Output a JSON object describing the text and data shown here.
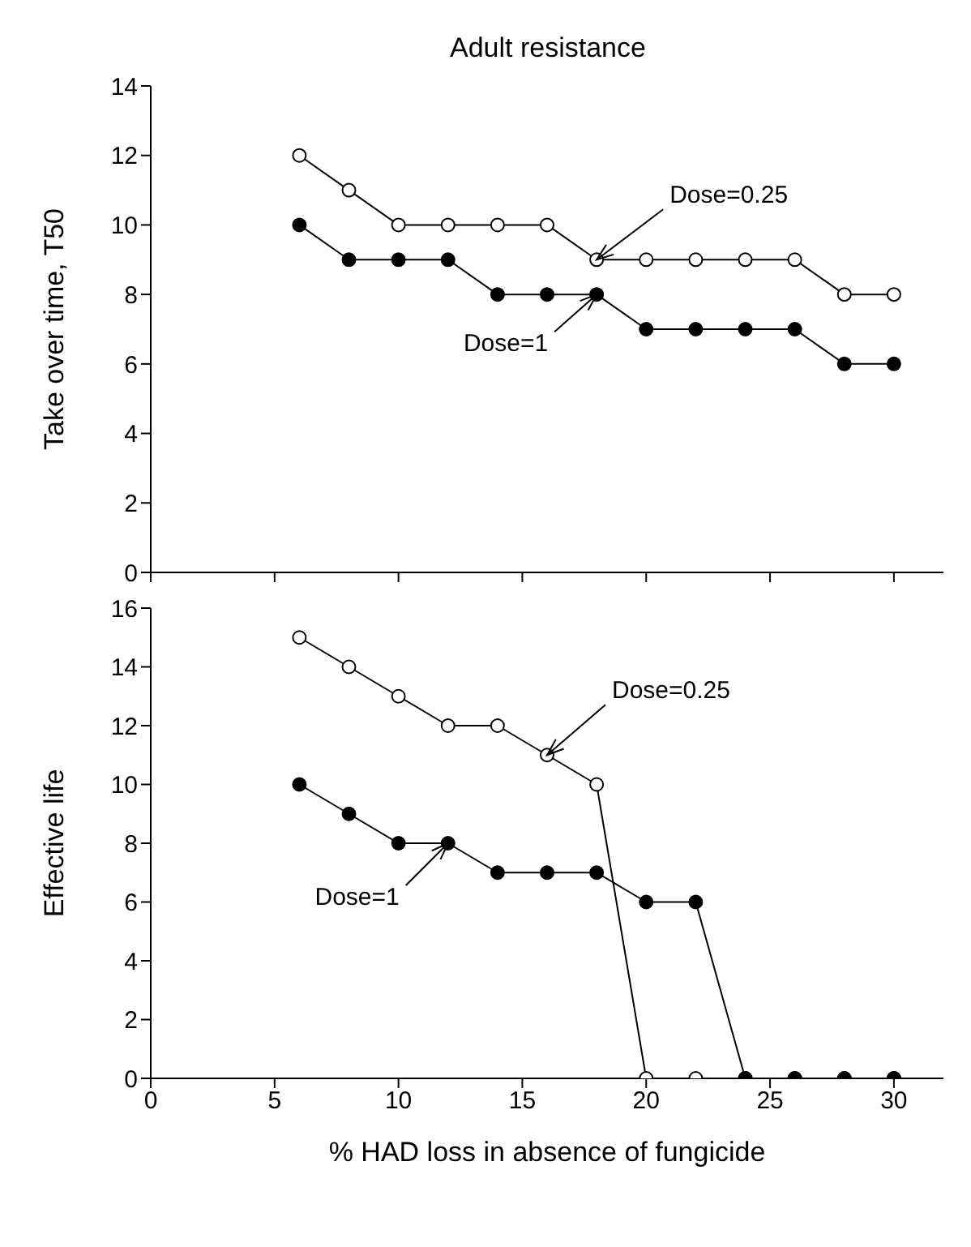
{
  "chart_data": [
    {
      "type": "line",
      "title": "Adult resistance",
      "ylabel": "Take over time, T50",
      "x": [
        6,
        8,
        10,
        12,
        14,
        16,
        18,
        20,
        22,
        24,
        26,
        28,
        30
      ],
      "xlim": [
        0,
        32
      ],
      "xticks": [
        0,
        5,
        10,
        15,
        20,
        25,
        30
      ],
      "ylim": [
        0,
        14
      ],
      "yticks": [
        0,
        2,
        4,
        6,
        8,
        10,
        12,
        14
      ],
      "tick_labels": "y",
      "marker": "circle",
      "grid": false,
      "legend": false,
      "series": [
        {
          "name": "Dose=0.25",
          "color": "#000000",
          "values": [
            12,
            11,
            10,
            10,
            10,
            10,
            9,
            9,
            9,
            9,
            9,
            8,
            8
          ]
        },
        {
          "name": "Dose=1",
          "color": "#000000",
          "values": [
            10,
            9,
            9,
            9,
            8,
            8,
            8,
            7,
            7,
            7,
            7,
            6,
            6
          ]
        }
      ]
    },
    {
      "type": "line",
      "xlabel": "% HAD loss in absence of fungicide",
      "ylabel": "Effective life",
      "x": [
        6,
        8,
        10,
        12,
        14,
        16,
        18,
        20,
        22,
        24,
        26,
        28,
        30
      ],
      "xlim": [
        0,
        32
      ],
      "xticks": [
        0,
        5,
        10,
        15,
        20,
        25,
        30
      ],
      "ylim": [
        0,
        16
      ],
      "yticks": [
        0,
        2,
        4,
        6,
        8,
        10,
        12,
        14,
        16
      ],
      "marker": "circle",
      "grid": false,
      "legend": false,
      "series": [
        {
          "name": "Dose=0.25",
          "color": "#000000",
          "values": [
            15,
            14,
            13,
            12,
            12,
            11,
            10,
            0,
            0,
            0,
            0,
            0,
            0
          ]
        },
        {
          "name": "Dose=1",
          "color": "#000000",
          "values": [
            10,
            9,
            8,
            8,
            7,
            7,
            7,
            6,
            6,
            0,
            0,
            0,
            0
          ]
        }
      ]
    }
  ]
}
